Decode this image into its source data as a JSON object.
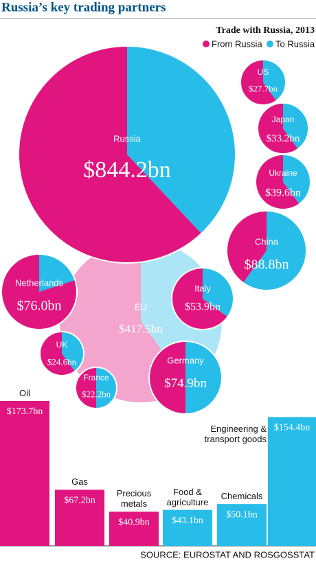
{
  "chart_data": [
    {
      "type": "bubble-pie",
      "title": "Russia’s key trading partners",
      "subtitle": "Trade with Russia, 2013",
      "categories": [
        "EU",
        "Russia",
        "US",
        "Japan",
        "Ukraine",
        "China",
        "Netherlands",
        "Italy",
        "UK",
        "France",
        "Germany"
      ],
      "values": [
        417.5,
        844.2,
        27.7,
        33.2,
        39.6,
        88.8,
        76.0,
        53.9,
        24.6,
        22.2,
        74.9
      ],
      "value_labels": [
        "$417.5bn",
        "$844.2bn",
        "$27.7bn",
        "$33.2bn",
        "$39.6bn",
        "$88.8bn",
        "$76.0bn",
        "$53.9bn",
        "$24.6bn",
        "$22.2bn",
        "$74.9bn"
      ],
      "series": [
        {
          "name": "From Russia",
          "color": "#e0157f",
          "values": [
            250.5,
            523.4,
            16.6,
            19.9,
            23.8,
            35.5,
            60.8,
            35.0,
            14.8,
            11.1,
            37.5
          ]
        },
        {
          "name": "To Russia",
          "color": "#27bde8",
          "values": [
            167.0,
            320.8,
            11.1,
            13.3,
            15.8,
            53.3,
            15.2,
            18.9,
            9.8,
            11.1,
            37.4
          ]
        }
      ]
    },
    {
      "type": "bar",
      "categories": [
        "Oil",
        "Gas",
        "Precious metals",
        "Food & agriculture",
        "Chemicals",
        "Engineering & transport goods"
      ],
      "values": [
        173.7,
        67.2,
        40.9,
        43.1,
        50.1,
        154.4
      ],
      "value_labels": [
        "$173.7bn",
        "$67.2bn",
        "$40.9bn",
        "$43.1bn",
        "$50.1bn",
        "$154.4bn"
      ],
      "colors": [
        "#e0157f",
        "#e0157f",
        "#e0157f",
        "#27bde8",
        "#27bde8",
        "#27bde8"
      ],
      "source": "SOURCE: EUROSTAT AND ROSGOSSTAT"
    }
  ]
}
